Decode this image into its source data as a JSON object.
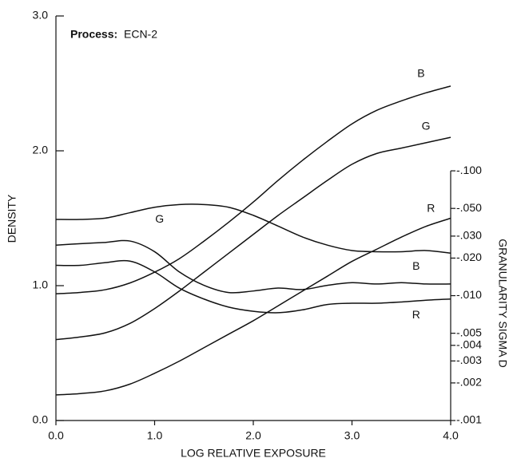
{
  "chart_data": {
    "type": "line",
    "annotation": {
      "label": "Process:",
      "value": "ECN-2"
    },
    "x_label": "LOG RELATIVE EXPOSURE",
    "y_label": "DENSITY",
    "y2_label": "GRANULARITY SIGMA D",
    "x": [
      0,
      0.25,
      0.5,
      0.75,
      1.0,
      1.25,
      1.5,
      1.75,
      2.0,
      2.25,
      2.5,
      2.75,
      3.0,
      3.25,
      3.5,
      3.75,
      4.0
    ],
    "xlim": [
      0,
      4
    ],
    "xticks": [
      {
        "value": 0,
        "label": "0.0"
      },
      {
        "value": 1,
        "label": "1.0"
      },
      {
        "value": 2,
        "label": "2.0"
      },
      {
        "value": 3,
        "label": "3.0"
      },
      {
        "value": 4,
        "label": "4.0"
      }
    ],
    "ylim": [
      0,
      3
    ],
    "yticks": [
      {
        "value": 0,
        "label": "0.0"
      },
      {
        "value": 1,
        "label": "1.0"
      },
      {
        "value": 2,
        "label": "2.0"
      },
      {
        "value": 3,
        "label": "3.0"
      }
    ],
    "y2_log": true,
    "y2lim": [
      0.001,
      1.74
    ],
    "y2ticks": [
      {
        "value": 0.001,
        "label": "-.001"
      },
      {
        "value": 0.002,
        "label": "-.002"
      },
      {
        "value": 0.003,
        "label": "-.003"
      },
      {
        "value": 0.004,
        "label": "-.004"
      },
      {
        "value": 0.005,
        "label": "-.005"
      },
      {
        "value": 0.01,
        "label": "-.010"
      },
      {
        "value": 0.02,
        "label": "-.020"
      },
      {
        "value": 0.03,
        "label": "-.030"
      },
      {
        "value": 0.05,
        "label": "-.050"
      },
      {
        "value": 0.1,
        "label": "-.100"
      }
    ],
    "series": [
      {
        "name": "B",
        "color": "#111111",
        "values": [
          0.94,
          0.95,
          0.97,
          1.02,
          1.1,
          1.2,
          1.33,
          1.47,
          1.62,
          1.78,
          1.93,
          2.07,
          2.2,
          2.3,
          2.37,
          2.43,
          2.48
        ]
      },
      {
        "name": "G",
        "color": "#111111",
        "values": [
          0.6,
          0.62,
          0.65,
          0.72,
          0.83,
          0.96,
          1.1,
          1.24,
          1.38,
          1.52,
          1.65,
          1.78,
          1.9,
          1.98,
          2.02,
          2.06,
          2.1
        ]
      },
      {
        "name": "R",
        "color": "#111111",
        "values": [
          0.19,
          0.2,
          0.22,
          0.27,
          0.35,
          0.44,
          0.54,
          0.64,
          0.74,
          0.85,
          0.96,
          1.07,
          1.18,
          1.27,
          1.36,
          1.44,
          1.5
        ]
      },
      {
        "name": "B",
        "color": "#111111",
        "axis": "y2",
        "values": [
          0.0408,
          0.0408,
          0.0418,
          0.0462,
          0.0511,
          0.0537,
          0.0537,
          0.0511,
          0.044,
          0.0361,
          0.0295,
          0.0254,
          0.023,
          0.0225,
          0.0225,
          0.023,
          0.0219
        ]
      },
      {
        "name": "R",
        "color": "#111111",
        "axis": "y2",
        "values": [
          0.0175,
          0.0175,
          0.0184,
          0.0189,
          0.0155,
          0.0115,
          0.0094,
          0.0081,
          0.0075,
          0.0073,
          0.0077,
          0.0085,
          0.0087,
          0.0087,
          0.0089,
          0.0092,
          0.0094
        ]
      },
      {
        "name": "G",
        "color": "#111111",
        "axis": "y2",
        "values": [
          0.0254,
          0.0261,
          0.0267,
          0.0274,
          0.0225,
          0.0155,
          0.0121,
          0.0106,
          0.0109,
          0.0115,
          0.0112,
          0.0121,
          0.0127,
          0.0124,
          0.0127,
          0.0124,
          0.0124
        ]
      }
    ]
  }
}
